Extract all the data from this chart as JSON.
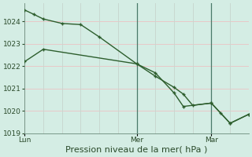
{
  "xlabel": "Pression niveau de la mer( hPa )",
  "background_color": "#d4ede4",
  "grid_color_h": "#e8c8c8",
  "grid_color_v": "#c8d8d0",
  "line_color": "#2d5e2d",
  "ylim": [
    1019.0,
    1024.8
  ],
  "yticks": [
    1019,
    1020,
    1021,
    1022,
    1023,
    1024
  ],
  "day_labels": [
    "Lun",
    "Mer",
    "Mar"
  ],
  "day_positions": [
    0.0,
    0.5,
    0.833
  ],
  "vline_positions": [
    0.5,
    0.833
  ],
  "series1_x": [
    0.0,
    0.042,
    0.083,
    0.167,
    0.25,
    0.333,
    0.5,
    0.583,
    0.667,
    0.708,
    0.833,
    0.917,
    1.0
  ],
  "series1_y": [
    1024.5,
    1024.3,
    1024.1,
    1023.9,
    1023.85,
    1023.3,
    1022.1,
    1021.7,
    1020.8,
    1020.2,
    1020.35,
    1019.45,
    1019.85
  ],
  "series2_x": [
    0.0,
    0.083,
    0.5,
    0.583,
    0.667,
    0.708,
    0.75,
    0.833,
    0.875,
    0.917,
    1.0
  ],
  "series2_y": [
    1022.2,
    1022.75,
    1022.1,
    1021.55,
    1021.05,
    1020.75,
    1020.25,
    1020.35,
    1019.9,
    1019.45,
    1019.85
  ],
  "markersize": 3.5,
  "linewidth": 1.0,
  "xlabel_fontsize": 8,
  "tick_labelsize": 6.5
}
